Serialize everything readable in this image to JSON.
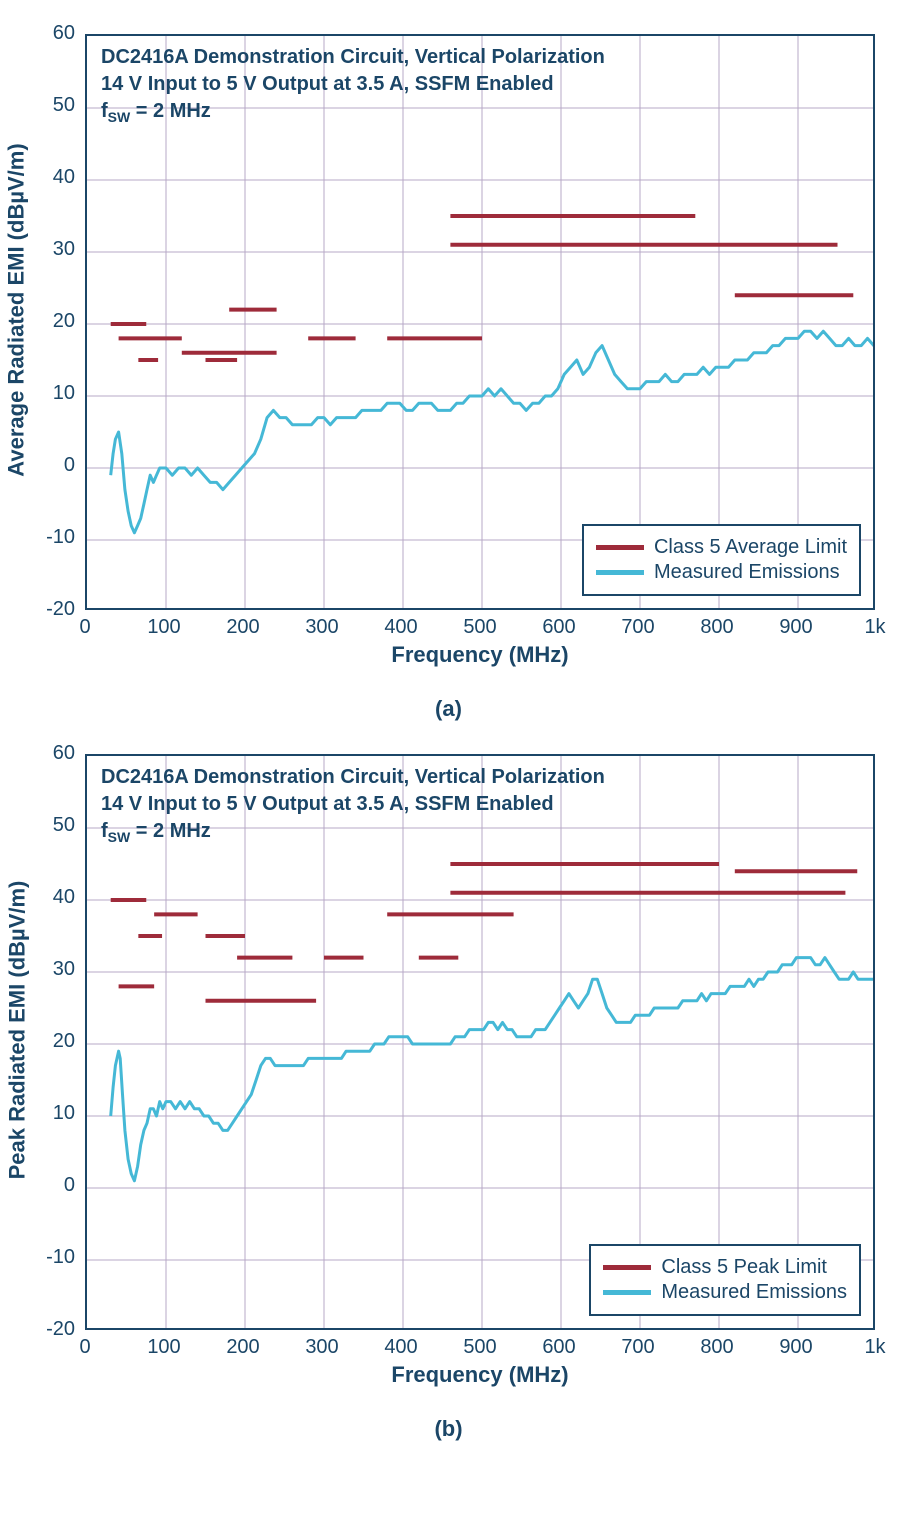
{
  "global": {
    "color_axis": "#1b4667",
    "color_grid": "#b7a8c7",
    "color_limit": "#9e2b3a",
    "color_meas": "#45b8d6",
    "fontsize_axis_title": 22,
    "fontsize_tick": 20,
    "fontsize_anno": 20,
    "fontsize_legend": 20,
    "grid_stroke_width": 1,
    "limit_stroke_width": 4,
    "meas_stroke_width": 3
  },
  "panels": [
    {
      "id": "a",
      "subcaption": "(a)",
      "ytitle": "Average Radiated EMI (dBµV/m)",
      "xtitle": "Frequency (MHz)",
      "xlim": [
        0,
        1000
      ],
      "xtick_step": 100,
      "xtick_last_label": "1k",
      "ylim": [
        -20,
        60
      ],
      "ytick_step": 10,
      "anno_lines": [
        "DC2416A Demonstration Circuit, Vertical Polarization",
        "14 V Input to 5 V Output at 3.5 A, SSFM Enabled",
        "f<sub>SW</sub> = 2 MHz"
      ],
      "legend": [
        {
          "color": "#9e2b3a",
          "label": "Class 5 Average Limit"
        },
        {
          "color": "#45b8d6",
          "label": "Measured Emissions"
        }
      ],
      "limit_segments": [
        {
          "x1": 30,
          "x2": 75,
          "y": 20
        },
        {
          "x1": 40,
          "x2": 120,
          "y": 18
        },
        {
          "x1": 65,
          "x2": 90,
          "y": 15
        },
        {
          "x1": 150,
          "x2": 190,
          "y": 15
        },
        {
          "x1": 120,
          "x2": 240,
          "y": 16
        },
        {
          "x1": 180,
          "x2": 240,
          "y": 22
        },
        {
          "x1": 280,
          "x2": 340,
          "y": 18
        },
        {
          "x1": 380,
          "x2": 500,
          "y": 18
        },
        {
          "x1": 460,
          "x2": 770,
          "y": 35
        },
        {
          "x1": 460,
          "x2": 950,
          "y": 31
        },
        {
          "x1": 820,
          "x2": 970,
          "y": 24
        }
      ],
      "emission_xy": [
        [
          30,
          -1
        ],
        [
          33,
          2
        ],
        [
          36,
          4
        ],
        [
          40,
          5
        ],
        [
          44,
          2
        ],
        [
          48,
          -3
        ],
        [
          52,
          -6
        ],
        [
          56,
          -8
        ],
        [
          60,
          -9
        ],
        [
          64,
          -8
        ],
        [
          68,
          -7
        ],
        [
          72,
          -5
        ],
        [
          76,
          -3
        ],
        [
          80,
          -1
        ],
        [
          84,
          -2
        ],
        [
          88,
          -1
        ],
        [
          92,
          0
        ],
        [
          96,
          0
        ],
        [
          100,
          0
        ],
        [
          108,
          -1
        ],
        [
          116,
          0
        ],
        [
          124,
          0
        ],
        [
          132,
          -1
        ],
        [
          140,
          0
        ],
        [
          148,
          -1
        ],
        [
          156,
          -2
        ],
        [
          164,
          -2
        ],
        [
          172,
          -3
        ],
        [
          180,
          -2
        ],
        [
          188,
          -1
        ],
        [
          196,
          0
        ],
        [
          204,
          1
        ],
        [
          212,
          2
        ],
        [
          220,
          4
        ],
        [
          228,
          7
        ],
        [
          236,
          8
        ],
        [
          244,
          7
        ],
        [
          252,
          7
        ],
        [
          260,
          6
        ],
        [
          268,
          6
        ],
        [
          276,
          6
        ],
        [
          284,
          6
        ],
        [
          292,
          7
        ],
        [
          300,
          7
        ],
        [
          308,
          6
        ],
        [
          316,
          7
        ],
        [
          324,
          7
        ],
        [
          332,
          7
        ],
        [
          340,
          7
        ],
        [
          348,
          8
        ],
        [
          356,
          8
        ],
        [
          364,
          8
        ],
        [
          372,
          8
        ],
        [
          380,
          9
        ],
        [
          388,
          9
        ],
        [
          396,
          9
        ],
        [
          404,
          8
        ],
        [
          412,
          8
        ],
        [
          420,
          9
        ],
        [
          428,
          9
        ],
        [
          436,
          9
        ],
        [
          444,
          8
        ],
        [
          452,
          8
        ],
        [
          460,
          8
        ],
        [
          468,
          9
        ],
        [
          476,
          9
        ],
        [
          484,
          10
        ],
        [
          492,
          10
        ],
        [
          500,
          10
        ],
        [
          508,
          11
        ],
        [
          516,
          10
        ],
        [
          524,
          11
        ],
        [
          532,
          10
        ],
        [
          540,
          9
        ],
        [
          548,
          9
        ],
        [
          556,
          8
        ],
        [
          564,
          9
        ],
        [
          572,
          9
        ],
        [
          580,
          10
        ],
        [
          588,
          10
        ],
        [
          596,
          11
        ],
        [
          604,
          13
        ],
        [
          612,
          14
        ],
        [
          620,
          15
        ],
        [
          628,
          13
        ],
        [
          636,
          14
        ],
        [
          644,
          16
        ],
        [
          652,
          17
        ],
        [
          660,
          15
        ],
        [
          668,
          13
        ],
        [
          676,
          12
        ],
        [
          684,
          11
        ],
        [
          692,
          11
        ],
        [
          700,
          11
        ],
        [
          708,
          12
        ],
        [
          716,
          12
        ],
        [
          724,
          12
        ],
        [
          732,
          13
        ],
        [
          740,
          12
        ],
        [
          748,
          12
        ],
        [
          756,
          13
        ],
        [
          764,
          13
        ],
        [
          772,
          13
        ],
        [
          780,
          14
        ],
        [
          788,
          13
        ],
        [
          796,
          14
        ],
        [
          804,
          14
        ],
        [
          812,
          14
        ],
        [
          820,
          15
        ],
        [
          828,
          15
        ],
        [
          836,
          15
        ],
        [
          844,
          16
        ],
        [
          852,
          16
        ],
        [
          860,
          16
        ],
        [
          868,
          17
        ],
        [
          876,
          17
        ],
        [
          884,
          18
        ],
        [
          892,
          18
        ],
        [
          900,
          18
        ],
        [
          908,
          19
        ],
        [
          916,
          19
        ],
        [
          924,
          18
        ],
        [
          932,
          19
        ],
        [
          940,
          18
        ],
        [
          948,
          17
        ],
        [
          956,
          17
        ],
        [
          964,
          18
        ],
        [
          972,
          17
        ],
        [
          980,
          17
        ],
        [
          988,
          18
        ],
        [
          996,
          17
        ],
        [
          1000,
          17
        ]
      ]
    },
    {
      "id": "b",
      "subcaption": "(b)",
      "ytitle": "Peak Radiated EMI (dBµV/m)",
      "xtitle": "Frequency (MHz)",
      "xlim": [
        0,
        1000
      ],
      "xtick_step": 100,
      "xtick_last_label": "1k",
      "ylim": [
        -20,
        60
      ],
      "ytick_step": 10,
      "anno_lines": [
        "DC2416A Demonstration Circuit, Vertical Polarization",
        "14 V Input to 5 V Output at 3.5 A, SSFM Enabled",
        "f<sub>SW</sub> = 2 MHz"
      ],
      "legend": [
        {
          "color": "#9e2b3a",
          "label": "Class 5 Peak Limit"
        },
        {
          "color": "#45b8d6",
          "label": "Measured Emissions"
        }
      ],
      "limit_segments": [
        {
          "x1": 30,
          "x2": 75,
          "y": 40
        },
        {
          "x1": 40,
          "x2": 85,
          "y": 28
        },
        {
          "x1": 65,
          "x2": 95,
          "y": 35
        },
        {
          "x1": 85,
          "x2": 140,
          "y": 38
        },
        {
          "x1": 150,
          "x2": 200,
          "y": 35
        },
        {
          "x1": 150,
          "x2": 290,
          "y": 26
        },
        {
          "x1": 190,
          "x2": 260,
          "y": 32
        },
        {
          "x1": 300,
          "x2": 350,
          "y": 32
        },
        {
          "x1": 420,
          "x2": 470,
          "y": 32
        },
        {
          "x1": 380,
          "x2": 540,
          "y": 38
        },
        {
          "x1": 460,
          "x2": 800,
          "y": 45
        },
        {
          "x1": 460,
          "x2": 960,
          "y": 41
        },
        {
          "x1": 820,
          "x2": 975,
          "y": 44
        }
      ],
      "emission_xy": [
        [
          30,
          10
        ],
        [
          33,
          14
        ],
        [
          36,
          17
        ],
        [
          40,
          19
        ],
        [
          42,
          18
        ],
        [
          45,
          13
        ],
        [
          48,
          8
        ],
        [
          52,
          4
        ],
        [
          56,
          2
        ],
        [
          60,
          1
        ],
        [
          64,
          3
        ],
        [
          68,
          6
        ],
        [
          72,
          8
        ],
        [
          76,
          9
        ],
        [
          80,
          11
        ],
        [
          84,
          11
        ],
        [
          88,
          10
        ],
        [
          92,
          12
        ],
        [
          96,
          11
        ],
        [
          100,
          12
        ],
        [
          106,
          12
        ],
        [
          112,
          11
        ],
        [
          118,
          12
        ],
        [
          124,
          11
        ],
        [
          130,
          12
        ],
        [
          136,
          11
        ],
        [
          142,
          11
        ],
        [
          148,
          10
        ],
        [
          154,
          10
        ],
        [
          160,
          9
        ],
        [
          166,
          9
        ],
        [
          172,
          8
        ],
        [
          178,
          8
        ],
        [
          184,
          9
        ],
        [
          190,
          10
        ],
        [
          196,
          11
        ],
        [
          202,
          12
        ],
        [
          208,
          13
        ],
        [
          214,
          15
        ],
        [
          220,
          17
        ],
        [
          226,
          18
        ],
        [
          232,
          18
        ],
        [
          238,
          17
        ],
        [
          244,
          17
        ],
        [
          250,
          17
        ],
        [
          256,
          17
        ],
        [
          262,
          17
        ],
        [
          268,
          17
        ],
        [
          274,
          17
        ],
        [
          280,
          18
        ],
        [
          286,
          18
        ],
        [
          292,
          18
        ],
        [
          298,
          18
        ],
        [
          304,
          18
        ],
        [
          310,
          18
        ],
        [
          316,
          18
        ],
        [
          322,
          18
        ],
        [
          328,
          19
        ],
        [
          334,
          19
        ],
        [
          340,
          19
        ],
        [
          346,
          19
        ],
        [
          352,
          19
        ],
        [
          358,
          19
        ],
        [
          364,
          20
        ],
        [
          370,
          20
        ],
        [
          376,
          20
        ],
        [
          382,
          21
        ],
        [
          388,
          21
        ],
        [
          394,
          21
        ],
        [
          400,
          21
        ],
        [
          406,
          21
        ],
        [
          412,
          20
        ],
        [
          418,
          20
        ],
        [
          424,
          20
        ],
        [
          430,
          20
        ],
        [
          436,
          20
        ],
        [
          442,
          20
        ],
        [
          448,
          20
        ],
        [
          454,
          20
        ],
        [
          460,
          20
        ],
        [
          466,
          21
        ],
        [
          472,
          21
        ],
        [
          478,
          21
        ],
        [
          484,
          22
        ],
        [
          490,
          22
        ],
        [
          496,
          22
        ],
        [
          502,
          22
        ],
        [
          508,
          23
        ],
        [
          514,
          23
        ],
        [
          520,
          22
        ],
        [
          526,
          23
        ],
        [
          532,
          22
        ],
        [
          538,
          22
        ],
        [
          544,
          21
        ],
        [
          550,
          21
        ],
        [
          556,
          21
        ],
        [
          562,
          21
        ],
        [
          568,
          22
        ],
        [
          574,
          22
        ],
        [
          580,
          22
        ],
        [
          586,
          23
        ],
        [
          592,
          24
        ],
        [
          598,
          25
        ],
        [
          604,
          26
        ],
        [
          610,
          27
        ],
        [
          616,
          26
        ],
        [
          622,
          25
        ],
        [
          628,
          26
        ],
        [
          634,
          27
        ],
        [
          640,
          29
        ],
        [
          646,
          29
        ],
        [
          652,
          27
        ],
        [
          658,
          25
        ],
        [
          664,
          24
        ],
        [
          670,
          23
        ],
        [
          676,
          23
        ],
        [
          682,
          23
        ],
        [
          688,
          23
        ],
        [
          694,
          24
        ],
        [
          700,
          24
        ],
        [
          706,
          24
        ],
        [
          712,
          24
        ],
        [
          718,
          25
        ],
        [
          724,
          25
        ],
        [
          730,
          25
        ],
        [
          736,
          25
        ],
        [
          742,
          25
        ],
        [
          748,
          25
        ],
        [
          754,
          26
        ],
        [
          760,
          26
        ],
        [
          766,
          26
        ],
        [
          772,
          26
        ],
        [
          778,
          27
        ],
        [
          784,
          26
        ],
        [
          790,
          27
        ],
        [
          796,
          27
        ],
        [
          802,
          27
        ],
        [
          808,
          27
        ],
        [
          814,
          28
        ],
        [
          820,
          28
        ],
        [
          826,
          28
        ],
        [
          832,
          28
        ],
        [
          838,
          29
        ],
        [
          844,
          28
        ],
        [
          850,
          29
        ],
        [
          856,
          29
        ],
        [
          862,
          30
        ],
        [
          868,
          30
        ],
        [
          874,
          30
        ],
        [
          880,
          31
        ],
        [
          886,
          31
        ],
        [
          892,
          31
        ],
        [
          898,
          32
        ],
        [
          904,
          32
        ],
        [
          910,
          32
        ],
        [
          916,
          32
        ],
        [
          922,
          31
        ],
        [
          928,
          31
        ],
        [
          934,
          32
        ],
        [
          940,
          31
        ],
        [
          946,
          30
        ],
        [
          952,
          29
        ],
        [
          958,
          29
        ],
        [
          964,
          29
        ],
        [
          970,
          30
        ],
        [
          976,
          29
        ],
        [
          982,
          29
        ],
        [
          988,
          29
        ],
        [
          994,
          29
        ],
        [
          1000,
          29
        ]
      ]
    }
  ]
}
